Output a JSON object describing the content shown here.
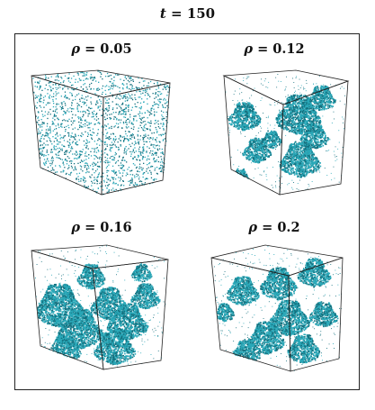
{
  "figure": {
    "title": "t = 150",
    "title_var": "t",
    "title_value": "150",
    "panels": [
      {
        "var": "ρ",
        "value": "0.05",
        "density": 0.05,
        "pattern": "dispersed"
      },
      {
        "var": "ρ",
        "value": "0.12",
        "density": 0.12,
        "pattern": "clusters"
      },
      {
        "var": "ρ",
        "value": "0.16",
        "density": 0.16,
        "pattern": "network"
      },
      {
        "var": "ρ",
        "value": "0.2",
        "density": 0.2,
        "pattern": "network"
      }
    ],
    "colors": {
      "particles": "#2aa8b8",
      "particles_dark": "#14707e",
      "edges": "#222222"
    }
  }
}
